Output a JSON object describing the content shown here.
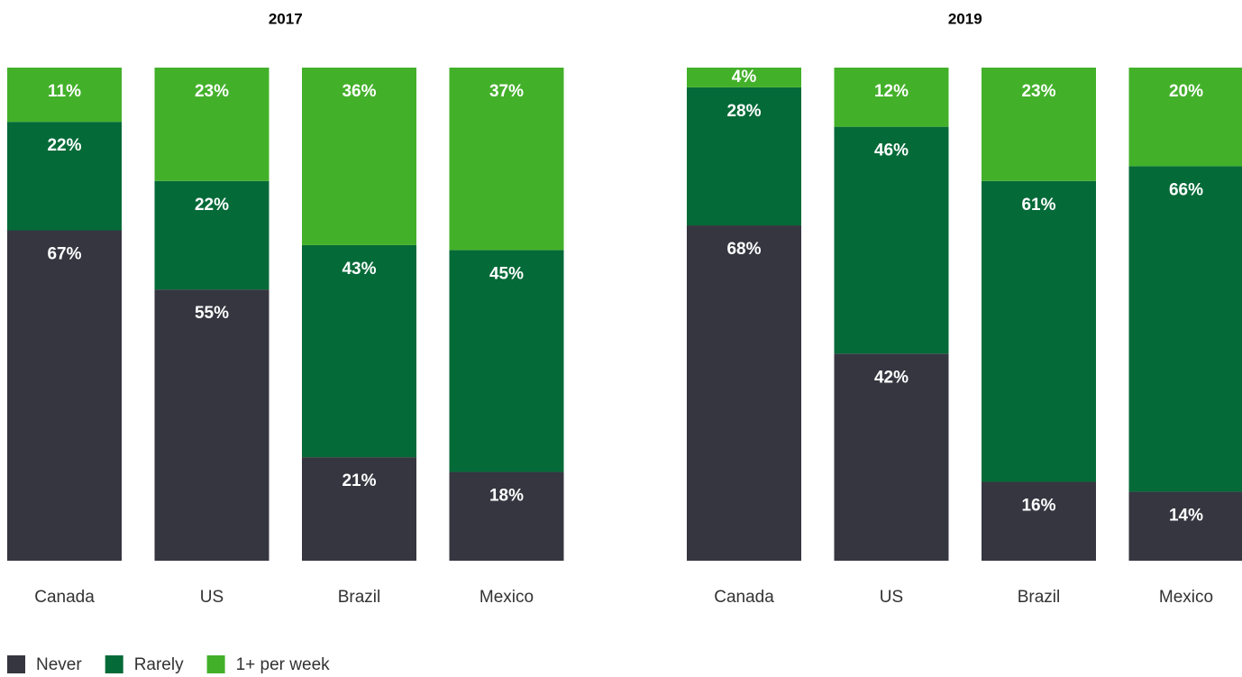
{
  "chart_data": [
    {
      "type": "stacked-bar",
      "title": "2017",
      "categories": [
        "Canada",
        "US",
        "Brazil",
        "Mexico"
      ],
      "series": [
        {
          "name": "Never",
          "color": "#353640",
          "values": [
            67,
            55,
            21,
            18
          ],
          "value_labels": [
            "67%",
            "55%",
            "21%",
            "18%"
          ]
        },
        {
          "name": "Rarely",
          "color": "#046a38",
          "values": [
            22,
            22,
            43,
            45
          ],
          "value_labels": [
            "22%",
            "22%",
            "43%",
            "45%"
          ]
        },
        {
          "name": "1+ per week",
          "color": "#43b02a",
          "values": [
            11,
            23,
            36,
            37
          ],
          "value_labels": [
            "11%",
            "23%",
            "36%",
            "37%"
          ]
        }
      ]
    },
    {
      "type": "stacked-bar",
      "title": "2019",
      "categories": [
        "Canada",
        "US",
        "Brazil",
        "Mexico"
      ],
      "series": [
        {
          "color": "#353640",
          "values": [
            68,
            42,
            16,
            14
          ],
          "value_labels": [
            "68%",
            "42%",
            "16%",
            "14%"
          ]
        },
        {
          "color": "#046a38",
          "values": [
            28,
            46,
            61,
            66
          ],
          "value_labels": [
            "28%",
            "46%",
            "61%",
            "66%"
          ]
        },
        {
          "color": "#43b02a",
          "values": [
            4,
            12,
            23,
            20
          ],
          "value_labels": [
            "4%",
            "12%",
            "23%",
            "20%"
          ]
        }
      ]
    }
  ]
}
